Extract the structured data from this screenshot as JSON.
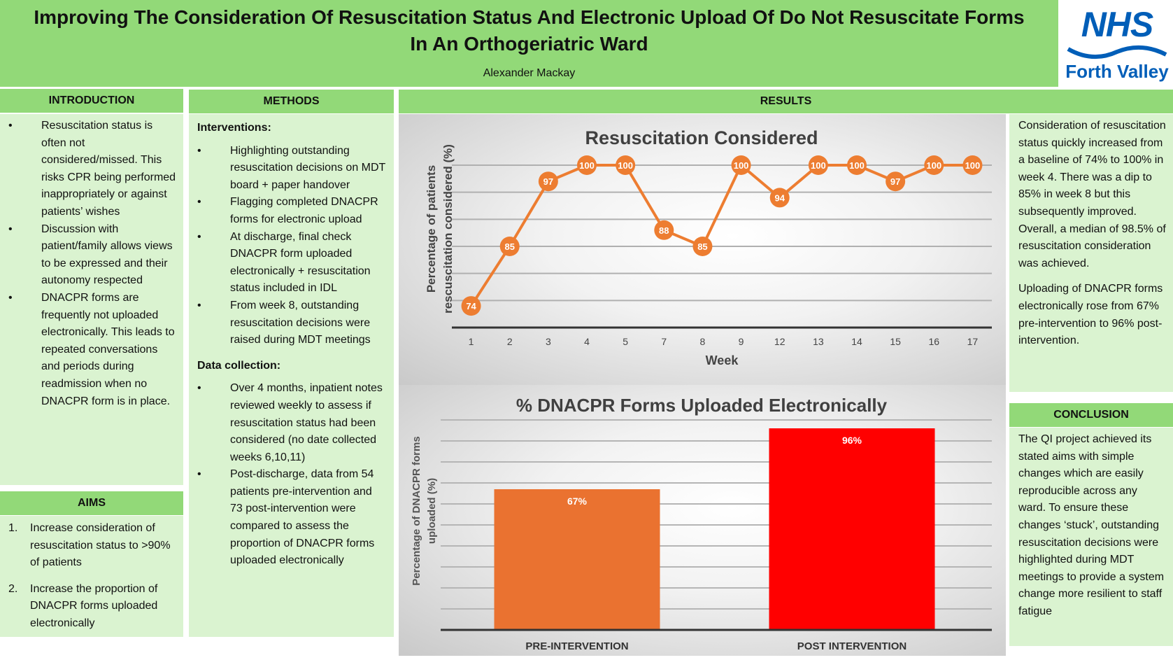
{
  "header": {
    "title": "Improving The Consideration Of Resuscitation Status And Electronic Upload Of Do Not Resuscitate Forms In An Orthogeriatric Ward",
    "author": "Alexander Mackay",
    "logo_nhs": "NHS",
    "logo_org": "Forth Valley"
  },
  "introduction": {
    "heading": "INTRODUCTION",
    "items": [
      "Resuscitation status is often not considered/missed. This risks CPR being performed inappropriately or against patients’ wishes",
      "Discussion with patient/family allows views to be expressed and their autonomy respected",
      "DNACPR forms are frequently not uploaded electronically. This leads to repeated conversations and periods during readmission when no DNACPR form is in place."
    ]
  },
  "aims": {
    "heading": "AIMS",
    "items": [
      {
        "num": "1.",
        "text": "Increase consideration of resuscitation status to >90% of patients"
      },
      {
        "num": "2.",
        "text": "Increase the proportion of DNACPR forms uploaded electronically"
      }
    ]
  },
  "methods": {
    "heading": "METHODS",
    "interventions_label": "Interventions:",
    "interventions": [
      "Highlighting outstanding resuscitation decisions on MDT board + paper handover",
      "Flagging completed DNACPR forms for electronic upload",
      "At discharge, final check DNACPR form uploaded electronically + resuscitation status included in IDL",
      "From week 8, outstanding resuscitation decisions were raised during MDT meetings"
    ],
    "data_label": "Data collection:",
    "data_items": [
      "Over 4 months, inpatient notes reviewed weekly to assess if resuscitation status had been considered (no date collected weeks 6,10,11)",
      "Post-discharge, data from 54 patients pre-intervention and 73 post-intervention were compared to assess the proportion of DNACPR forms uploaded electronically"
    ]
  },
  "results": {
    "heading": "RESULTS",
    "text": [
      "Consideration of resuscitation status quickly increased from a baseline of 74% to 100% in week 4. There was a dip to 85% in week 8 but this subsequently improved. Overall, a median of 98.5% of resuscitation consideration was achieved.",
      "Uploading of DNACPR forms electronically rose from 67% pre-intervention to 96% post-intervention."
    ]
  },
  "conclusion": {
    "heading": "CONCLUSION",
    "text": "The QI project achieved its stated aims with simple changes which are easily reproducible across any ward. To ensure these changes ‘stuck’, outstanding resuscitation decisions were highlighted during MDT meetings to provide a system change more resilient to staff fatigue"
  },
  "chart_data": [
    {
      "type": "line",
      "title": "Resuscitation Considered",
      "xlabel": "Week",
      "ylabel": [
        "Percentage of patients",
        "rescuscitation considered (%)"
      ],
      "categories": [
        "1",
        "2",
        "3",
        "4",
        "5",
        "7",
        "8",
        "9",
        "12",
        "13",
        "14",
        "15",
        "16",
        "17"
      ],
      "values": [
        74,
        85,
        97,
        100,
        100,
        88,
        85,
        100,
        94,
        100,
        100,
        97,
        100,
        100
      ],
      "ylim": [
        70,
        100
      ],
      "grid": true,
      "color": "#ed7d31"
    },
    {
      "type": "bar",
      "title": "% DNACPR Forms Uploaded Electronically",
      "ylabel": [
        "Percentage of DNACPR forms",
        "uploaded (%)"
      ],
      "categories": [
        "PRE-INTERVENTION",
        "POST INTERVENTION"
      ],
      "values": [
        67,
        96
      ],
      "labels": [
        "67%",
        "96%"
      ],
      "colors": [
        "#ea7230",
        "#ff0000"
      ],
      "ylim": [
        0,
        100
      ],
      "grid": true
    }
  ]
}
